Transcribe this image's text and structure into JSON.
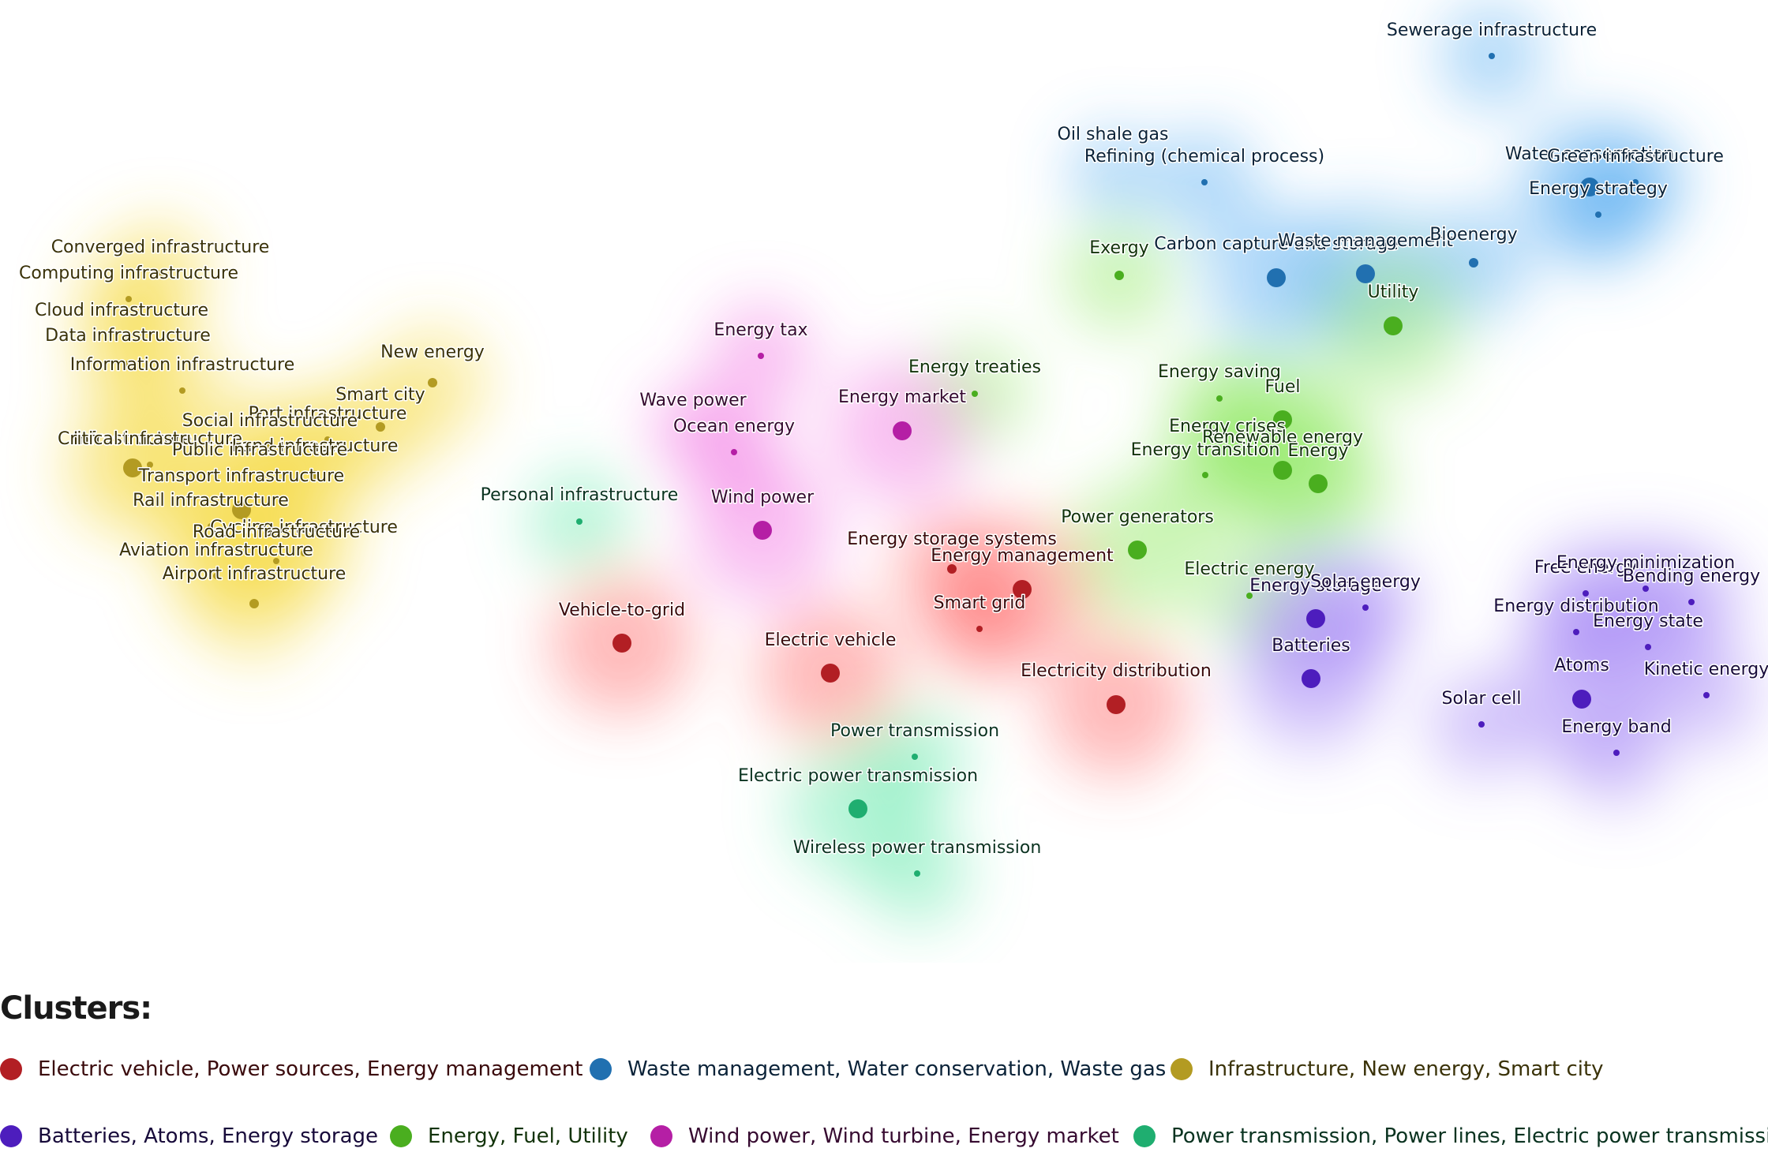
{
  "legend": {
    "title": "Clusters:",
    "items": [
      {
        "cluster": "red",
        "label": "Electric vehicle, Power sources, Energy management"
      },
      {
        "cluster": "blue",
        "label": "Waste management, Water conservation, Waste gas"
      },
      {
        "cluster": "yellow",
        "label": "Infrastructure, New energy, Smart city"
      },
      {
        "cluster": "purple",
        "label": "Batteries, Atoms, Energy storage"
      },
      {
        "cluster": "green",
        "label": "Energy, Fuel, Utility"
      },
      {
        "cluster": "magenta",
        "label": "Wind power, Wind turbine, Energy market"
      },
      {
        "cluster": "teal",
        "label": "Power transmission, Power lines, Electric power transmission"
      }
    ]
  },
  "clusters": {
    "red": {
      "dot": "#b21f24",
      "glow": "#ff5a5a",
      "text": "#3a0a0c"
    },
    "blue": {
      "dot": "#2170b0",
      "glow": "#4aa8f0",
      "text": "#0a2238"
    },
    "yellow": {
      "dot": "#b39b22",
      "glow": "#f5da3c",
      "text": "#3a3208"
    },
    "purple": {
      "dot": "#4d1dbd",
      "glow": "#9a7af5",
      "text": "#170a3a"
    },
    "green": {
      "dot": "#4aae1f",
      "glow": "#8ae85a",
      "text": "#12330a"
    },
    "magenta": {
      "dot": "#b51fa5",
      "glow": "#f06ae0",
      "text": "#360a30"
    },
    "teal": {
      "dot": "#1fae70",
      "glow": "#5ae8a8",
      "text": "#0a3320"
    }
  },
  "nodes": [
    {
      "label": "Sewerage infrastructure",
      "cluster": "blue",
      "weight": 1
    },
    {
      "label": "Oil shale gas",
      "cluster": "blue",
      "weight": 0
    },
    {
      "label": "Refining (chemical process)",
      "cluster": "blue",
      "weight": 1
    },
    {
      "label": "Water conservation",
      "cluster": "blue",
      "weight": 3
    },
    {
      "label": "Green infrastructure",
      "cluster": "blue",
      "weight": 1
    },
    {
      "label": "Energy strategy",
      "cluster": "blue",
      "weight": 1
    },
    {
      "label": "Carbon capture and storage",
      "cluster": "blue",
      "weight": 3
    },
    {
      "label": "Waste management",
      "cluster": "blue",
      "weight": 3
    },
    {
      "label": "Bioenergy",
      "cluster": "blue",
      "weight": 2
    },
    {
      "label": "Exergy",
      "cluster": "green",
      "weight": 2
    },
    {
      "label": "Utility",
      "cluster": "green",
      "weight": 3
    },
    {
      "label": "Energy treaties",
      "cluster": "green",
      "weight": 1
    },
    {
      "label": "Energy saving",
      "cluster": "green",
      "weight": 1
    },
    {
      "label": "Fuel",
      "cluster": "green",
      "weight": 3
    },
    {
      "label": "Energy crises",
      "cluster": "green",
      "weight": 0
    },
    {
      "label": "Renewable energy",
      "cluster": "green",
      "weight": 3
    },
    {
      "label": "Energy transition",
      "cluster": "green",
      "weight": 1
    },
    {
      "label": "Energy",
      "cluster": "green",
      "weight": 3
    },
    {
      "label": "Power generators",
      "cluster": "green",
      "weight": 3
    },
    {
      "label": "Electric energy",
      "cluster": "green",
      "weight": 1
    },
    {
      "label": "Energy tax",
      "cluster": "magenta",
      "weight": 1
    },
    {
      "label": "Wave power",
      "cluster": "magenta",
      "weight": 0
    },
    {
      "label": "Ocean energy",
      "cluster": "magenta",
      "weight": 1
    },
    {
      "label": "Energy market",
      "cluster": "magenta",
      "weight": 3
    },
    {
      "label": "Wind power",
      "cluster": "magenta",
      "weight": 3
    },
    {
      "label": "Personal infrastructure",
      "cluster": "teal",
      "weight": 1
    },
    {
      "label": "Power transmission",
      "cluster": "teal",
      "weight": 1
    },
    {
      "label": "Electric power transmission",
      "cluster": "teal",
      "weight": 3
    },
    {
      "label": "Wireless power transmission",
      "cluster": "teal",
      "weight": 1
    },
    {
      "label": "Energy storage systems",
      "cluster": "red",
      "weight": 2
    },
    {
      "label": "Energy management",
      "cluster": "red",
      "weight": 3
    },
    {
      "label": "Smart grid",
      "cluster": "red",
      "weight": 1
    },
    {
      "label": "Vehicle-to-grid",
      "cluster": "red",
      "weight": 3
    },
    {
      "label": "Electric vehicle",
      "cluster": "red",
      "weight": 3
    },
    {
      "label": "Electricity distribution",
      "cluster": "red",
      "weight": 3
    },
    {
      "label": "Energy storage",
      "cluster": "purple",
      "weight": 3
    },
    {
      "label": "Solar energy",
      "cluster": "purple",
      "weight": 1
    },
    {
      "label": "Batteries",
      "cluster": "purple",
      "weight": 3
    },
    {
      "label": "Free energy",
      "cluster": "purple",
      "weight": 1
    },
    {
      "label": "Energy minimization",
      "cluster": "purple",
      "weight": 1
    },
    {
      "label": "Bending energy",
      "cluster": "purple",
      "weight": 1
    },
    {
      "label": "Energy distribution",
      "cluster": "purple",
      "weight": 1
    },
    {
      "label": "Energy state",
      "cluster": "purple",
      "weight": 1
    },
    {
      "label": "Atoms",
      "cluster": "purple",
      "weight": 3
    },
    {
      "label": "Kinetic energy",
      "cluster": "purple",
      "weight": 1
    },
    {
      "label": "Solar cell",
      "cluster": "purple",
      "weight": 1
    },
    {
      "label": "Energy band",
      "cluster": "purple",
      "weight": 1
    },
    {
      "label": "Converged infrastructure",
      "cluster": "yellow",
      "weight": 1
    },
    {
      "label": "Computing infrastructure",
      "cluster": "yellow",
      "weight": 1
    },
    {
      "label": "Cloud infrastructure",
      "cluster": "yellow",
      "weight": 0
    },
    {
      "label": "Data infrastructure",
      "cluster": "yellow",
      "weight": 1
    },
    {
      "label": "Information infrastructure",
      "cluster": "yellow",
      "weight": 1
    },
    {
      "label": "New energy",
      "cluster": "yellow",
      "weight": 2
    },
    {
      "label": "Smart city",
      "cluster": "yellow",
      "weight": 2
    },
    {
      "label": "Port infrastructure",
      "cluster": "yellow",
      "weight": 1
    },
    {
      "label": "Social infrastructure",
      "cluster": "yellow",
      "weight": 1
    },
    {
      "label": "Infrastructure",
      "cluster": "yellow",
      "weight": 3
    },
    {
      "label": "Critical infrastructure",
      "cluster": "yellow",
      "weight": 1
    },
    {
      "label": "Land infrastructure",
      "cluster": "yellow",
      "weight": 2
    },
    {
      "label": "Public infrastructure",
      "cluster": "yellow",
      "weight": 1
    },
    {
      "label": "Transport infrastructure",
      "cluster": "yellow",
      "weight": 3
    },
    {
      "label": "Rail infrastructure",
      "cluster": "yellow",
      "weight": 1
    },
    {
      "label": "Cycling infrastructure",
      "cluster": "yellow",
      "weight": 1
    },
    {
      "label": "Road infrastructure",
      "cluster": "yellow",
      "weight": 1
    },
    {
      "label": "Aviation infrastructure",
      "cluster": "yellow",
      "weight": 1
    },
    {
      "label": "Airport infrastructure",
      "cluster": "yellow",
      "weight": 2
    }
  ]
}
